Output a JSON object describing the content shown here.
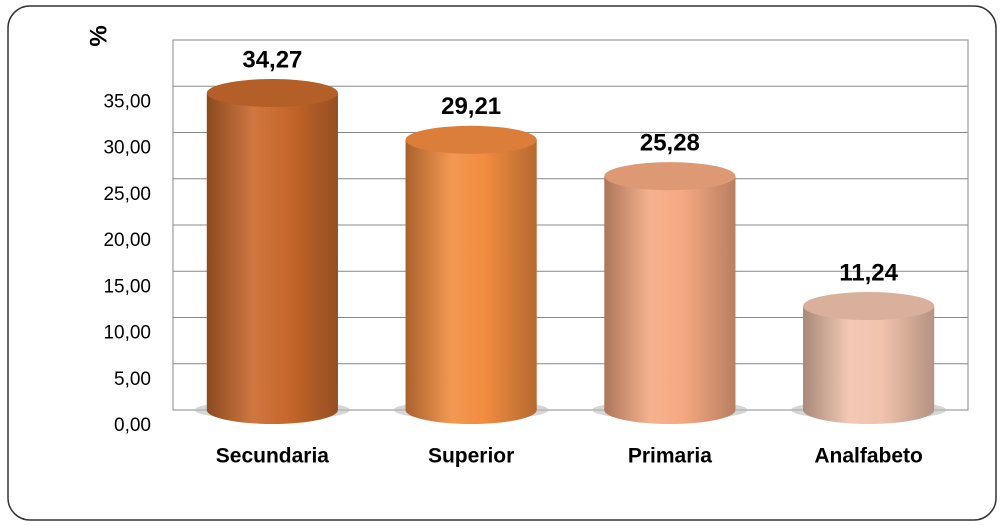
{
  "chart_data": {
    "type": "bar",
    "y_label": "%",
    "categories": [
      "Secundaria",
      "Superior",
      "Primaria",
      "Analfabeto"
    ],
    "values": [
      34.27,
      29.21,
      25.28,
      11.24
    ],
    "value_labels": [
      "34,27",
      "29,21",
      "25,28",
      "11,24"
    ],
    "colors": [
      "#c8682c",
      "#f28c40",
      "#f5a981",
      "#f1c3ad"
    ],
    "ylim": [
      0,
      40
    ],
    "yticks": [
      {
        "value": 0,
        "label": "0,00"
      },
      {
        "value": 5,
        "label": "5,00"
      },
      {
        "value": 10,
        "label": "10,00"
      },
      {
        "value": 15,
        "label": "15,00"
      },
      {
        "value": 20,
        "label": "20,00"
      },
      {
        "value": 25,
        "label": "25,00"
      },
      {
        "value": 30,
        "label": "30,00"
      },
      {
        "value": 35,
        "label": "35,00"
      }
    ],
    "grid": true
  }
}
